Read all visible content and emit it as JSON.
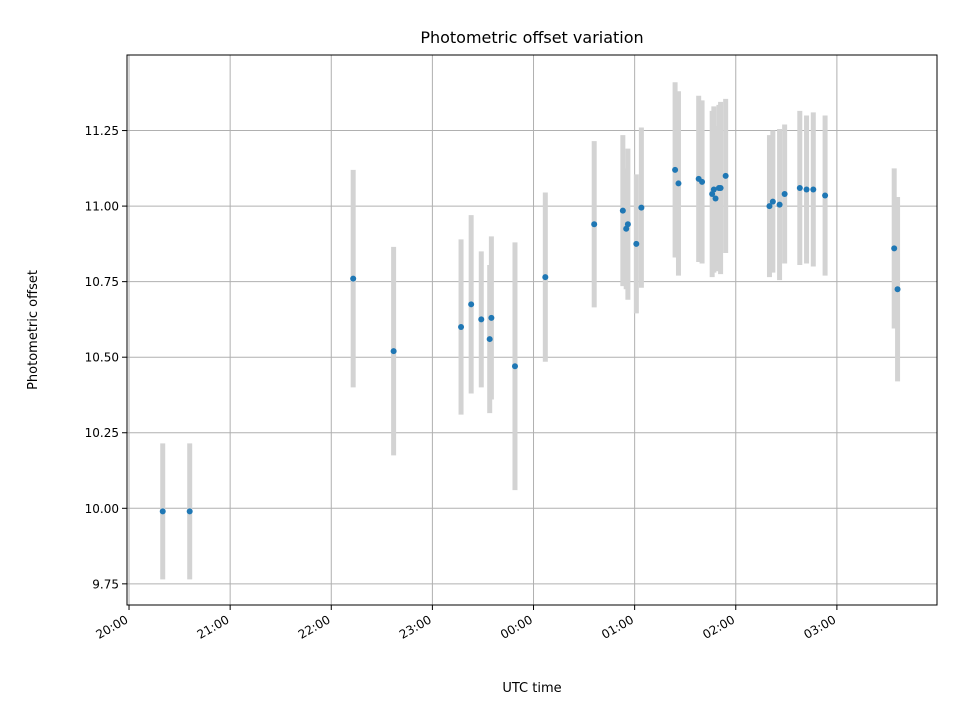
{
  "chart_data": {
    "type": "scatter",
    "title": "Photometric offset variation",
    "xlabel": "UTC time",
    "ylabel": "Photometric offset",
    "x_axis_type": "time",
    "x_date": "2024-01-01",
    "xlim": [
      "20:00",
      "28:00"
    ],
    "x_ticks": [
      "20:00",
      "21:00",
      "22:00",
      "23:00",
      "00:00",
      "01:00",
      "02:00",
      "03:00"
    ],
    "x_tick_labels": [
      "20:00",
      "21:00",
      "22:00",
      "23:00",
      "00:00",
      "01:00",
      "02:00",
      "03:00"
    ],
    "ylim": [
      9.68,
      11.5
    ],
    "y_ticks": [
      9.75,
      10.0,
      10.25,
      10.5,
      10.75,
      11.0,
      11.25
    ],
    "y_tick_labels": [
      "9.75",
      "10.00",
      "10.25",
      "10.50",
      "10.75",
      "11.00",
      "11.25"
    ],
    "grid": true,
    "colors": {
      "points": "#1f77b4",
      "errorbars": "#d3d3d3"
    },
    "points": [
      {
        "time": "20:20",
        "y": 9.99,
        "yerr": 0.225
      },
      {
        "time": "20:36",
        "y": 9.99,
        "yerr": 0.225
      },
      {
        "time": "22:13",
        "y": 10.76,
        "yerr": 0.36
      },
      {
        "time": "22:37",
        "y": 10.52,
        "yerr": 0.345
      },
      {
        "time": "23:17",
        "y": 10.6,
        "yerr": 0.29
      },
      {
        "time": "23:23",
        "y": 10.675,
        "yerr": 0.295
      },
      {
        "time": "23:29",
        "y": 10.625,
        "yerr": 0.225
      },
      {
        "time": "23:34",
        "y": 10.56,
        "yerr": 0.245
      },
      {
        "time": "23:35",
        "y": 10.63,
        "yerr": 0.27
      },
      {
        "time": "23:49",
        "y": 10.47,
        "yerr": 0.41
      },
      {
        "time": "00:07",
        "y": 10.765,
        "yerr": 0.28
      },
      {
        "time": "00:36",
        "y": 10.94,
        "yerr": 0.275
      },
      {
        "time": "00:53",
        "y": 10.985,
        "yerr": 0.25
      },
      {
        "time": "00:55",
        "y": 10.925,
        "yerr": 0.2
      },
      {
        "time": "00:56",
        "y": 10.94,
        "yerr": 0.25
      },
      {
        "time": "01:01",
        "y": 10.875,
        "yerr": 0.23
      },
      {
        "time": "01:04",
        "y": 10.995,
        "yerr": 0.265
      },
      {
        "time": "01:24",
        "y": 11.12,
        "yerr": 0.29
      },
      {
        "time": "01:26",
        "y": 11.075,
        "yerr": 0.305
      },
      {
        "time": "01:38",
        "y": 11.09,
        "yerr": 0.275
      },
      {
        "time": "01:40",
        "y": 11.08,
        "yerr": 0.27
      },
      {
        "time": "01:46",
        "y": 11.04,
        "yerr": 0.275
      },
      {
        "time": "01:47",
        "y": 11.055,
        "yerr": 0.275
      },
      {
        "time": "01:48",
        "y": 11.025,
        "yerr": 0.24
      },
      {
        "time": "01:50",
        "y": 11.06,
        "yerr": 0.275
      },
      {
        "time": "01:51",
        "y": 11.06,
        "yerr": 0.285
      },
      {
        "time": "01:54",
        "y": 11.1,
        "yerr": 0.255
      },
      {
        "time": "02:20",
        "y": 11.0,
        "yerr": 0.235
      },
      {
        "time": "02:22",
        "y": 11.015,
        "yerr": 0.235
      },
      {
        "time": "02:26",
        "y": 11.005,
        "yerr": 0.25
      },
      {
        "time": "02:29",
        "y": 11.04,
        "yerr": 0.23
      },
      {
        "time": "02:38",
        "y": 11.06,
        "yerr": 0.255
      },
      {
        "time": "02:42",
        "y": 11.055,
        "yerr": 0.245
      },
      {
        "time": "02:46",
        "y": 11.055,
        "yerr": 0.255
      },
      {
        "time": "02:53",
        "y": 11.035,
        "yerr": 0.265
      },
      {
        "time": "03:34",
        "y": 10.86,
        "yerr": 0.265
      },
      {
        "time": "03:36",
        "y": 10.725,
        "yerr": 0.305
      }
    ]
  }
}
